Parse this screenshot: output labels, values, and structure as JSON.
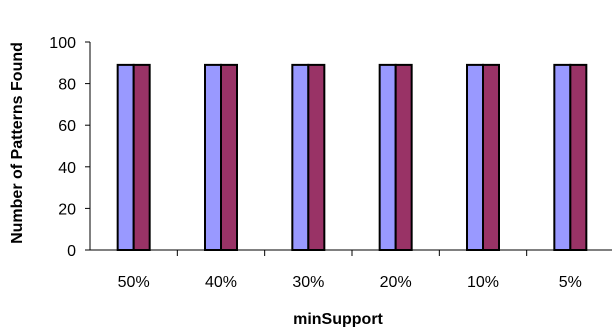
{
  "chart_data": {
    "type": "bar",
    "title": "",
    "xlabel": "minSupport",
    "ylabel": "Number of Patterns Found",
    "categories": [
      "50%",
      "40%",
      "30%",
      "20%",
      "10%",
      "5%"
    ],
    "series": [
      {
        "values": [
          89,
          89,
          89,
          89,
          89,
          89
        ],
        "color": "#9999ff"
      },
      {
        "values": [
          89,
          89,
          89,
          89,
          89,
          89
        ],
        "color": "#993366"
      }
    ],
    "ylim": [
      0,
      100
    ],
    "yticks": [
      0,
      20,
      40,
      60,
      80,
      100
    ],
    "grid": false,
    "legend": "none"
  }
}
